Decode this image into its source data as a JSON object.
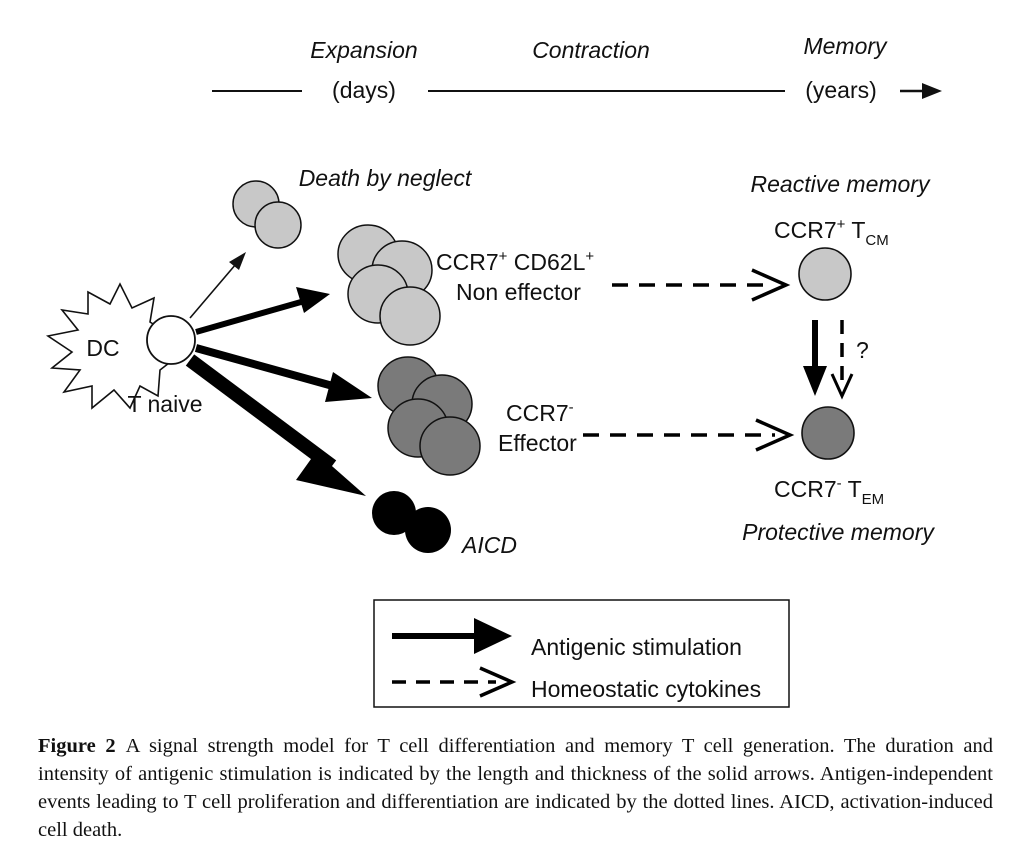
{
  "timeline": {
    "expansion": "Expansion",
    "expansion_unit": "(days)",
    "contraction": "Contraction",
    "memory": "Memory",
    "memory_unit": "(years)"
  },
  "cells": {
    "dc": "DC",
    "t_naive": "T naive",
    "death_by_neglect": "Death by neglect",
    "non_effector_marker_a": "CCR7",
    "non_effector_marker_a_sup": "+",
    "non_effector_marker_b": " CD62L",
    "non_effector_marker_b_sup": "+",
    "non_effector": "Non effector",
    "effector_marker": "CCR7",
    "effector_marker_sup": "-",
    "effector": "Effector",
    "aicd": "AICD"
  },
  "memory": {
    "reactive": "Reactive memory",
    "tcm_marker": "CCR7",
    "tcm_sup": "+",
    "tcm_t": " T",
    "tcm_sub": "CM",
    "question": "?",
    "tem_marker": "CCR7",
    "tem_sup": "-",
    "tem_t": " T",
    "tem_sub": "EM",
    "protective": "Protective memory"
  },
  "legend": {
    "antigenic": "Antigenic stimulation",
    "homeostatic": "Homeostatic cytokines"
  },
  "caption": {
    "label": "Figure 2",
    "text": "A signal strength model for T cell differentiation and memory T cell generation. The duration and intensity of antigenic stimulation is indicated by the length and thickness of the solid arrows. Antigen-independent events leading to T cell proliferation and differentiation are indicated by the dotted lines. AICD, activation-induced cell death."
  },
  "colors": {
    "light_cell": "#c8c8c8",
    "dark_cell": "#7a7a7a",
    "black_cell": "#000000",
    "naive_cell": "#ffffff"
  }
}
